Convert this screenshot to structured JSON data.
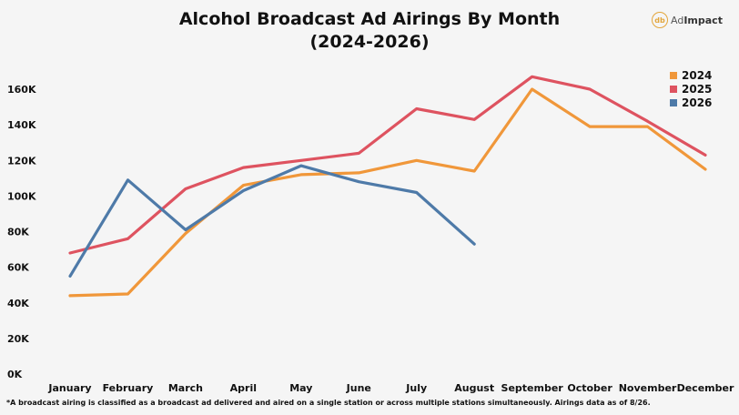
{
  "header": {
    "title_line1": "Alcohol Broadcast Ad Airings By Month",
    "title_line2": "(2024-2026)"
  },
  "logo": {
    "mark": "db",
    "text_prefix": "Ad",
    "text_suffix": "Impact",
    "accent_color": "#e3a63c"
  },
  "footnote": "*A broadcast airing is classified as a broadcast ad delivered and aired on a single station or across multiple stations simultaneously. Airings data as of 8/26.",
  "chart_data": {
    "type": "line",
    "title": "Alcohol Broadcast Ad Airings By Month (2024-2026)",
    "xlabel": "",
    "ylabel": "",
    "categories": [
      "January",
      "February",
      "March",
      "April",
      "May",
      "June",
      "July",
      "August",
      "September",
      "October",
      "November",
      "December"
    ],
    "ylim": [
      0,
      160000
    ],
    "yticks": [
      0,
      20000,
      40000,
      60000,
      80000,
      100000,
      120000,
      140000,
      160000
    ],
    "ytick_labels": [
      "0K",
      "20K",
      "40K",
      "60K",
      "80K",
      "100K",
      "120K",
      "140K",
      "160K"
    ],
    "grid": false,
    "legend_position": "top-right",
    "series": [
      {
        "name": "2024",
        "color": "#f0973a",
        "values": [
          44000,
          45000,
          79000,
          106000,
          112000,
          113000,
          120000,
          114000,
          160000,
          139000,
          139000,
          115000
        ]
      },
      {
        "name": "2025",
        "color": "#de5360",
        "values": [
          68000,
          76000,
          104000,
          116000,
          120000,
          124000,
          149000,
          143000,
          167000,
          160000,
          142000,
          123000
        ]
      },
      {
        "name": "2026",
        "color": "#4e7aa8",
        "values": [
          55000,
          109000,
          81000,
          103000,
          117000,
          108000,
          102000,
          73000,
          null,
          null,
          null,
          null
        ]
      }
    ]
  }
}
